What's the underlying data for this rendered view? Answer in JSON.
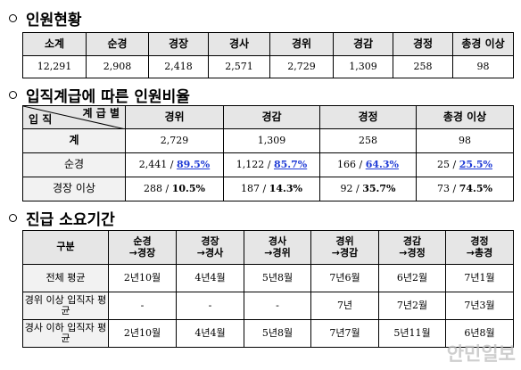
{
  "section1": {
    "title": "인원현황",
    "headers": [
      "소계",
      "순경",
      "경장",
      "경사",
      "경위",
      "경감",
      "경정",
      "총경 이상"
    ],
    "values": [
      "12,291",
      "2,908",
      "2,418",
      "2,571",
      "2,729",
      "1,309",
      "258",
      "98"
    ]
  },
  "section2": {
    "title": "입직계급에 따른 인원비율",
    "corner_top": "계 급 별",
    "corner_bottom": "입 직",
    "headers": [
      "경위",
      "경감",
      "경정",
      "총경 이상"
    ],
    "rows": [
      {
        "label": "계",
        "cells": [
          {
            "n": "2,729",
            "p": ""
          },
          {
            "n": "1,309",
            "p": ""
          },
          {
            "n": "258",
            "p": ""
          },
          {
            "n": "98",
            "p": ""
          }
        ]
      },
      {
        "label": "순경",
        "cells": [
          {
            "n": "2,441 / ",
            "p": "89.5%"
          },
          {
            "n": "1,122 / ",
            "p": "85.7%"
          },
          {
            "n": "166 / ",
            "p": "64.3%"
          },
          {
            "n": "25 / ",
            "p": "25.5%"
          }
        ]
      },
      {
        "label": "경장 이상",
        "cells": [
          {
            "n": "288 / ",
            "p": "10.5%"
          },
          {
            "n": "187 / ",
            "p": "14.3%"
          },
          {
            "n": "92 / ",
            "p": "35.7%"
          },
          {
            "n": "73 / ",
            "p": "74.5%"
          }
        ]
      }
    ]
  },
  "section3": {
    "title": "진급 소요기간",
    "corner": "구분",
    "headers": [
      {
        "l1": "순경",
        "l2": "→경장"
      },
      {
        "l1": "경장",
        "l2": "→경사"
      },
      {
        "l1": "경사",
        "l2": "→경위"
      },
      {
        "l1": "경위",
        "l2": "→경감"
      },
      {
        "l1": "경감",
        "l2": "→경정"
      },
      {
        "l1": "경정",
        "l2": "→총경"
      }
    ],
    "rows": [
      {
        "label": "전체 평균",
        "cells": [
          "2년10월",
          "4년4월",
          "5년8월",
          "7년6월",
          "6년2월",
          "7년1월"
        ]
      },
      {
        "label": "경위 이상 입직자 평균",
        "cells": [
          "-",
          "-",
          "-",
          "7년",
          "7년2월",
          "7년3월"
        ]
      },
      {
        "label": "경사 이하 입직자 평균",
        "cells": [
          "2년10월",
          "4년4월",
          "5년8월",
          "7년7월",
          "5년11월",
          "6년8월"
        ]
      }
    ]
  },
  "watermark": "안민일보"
}
